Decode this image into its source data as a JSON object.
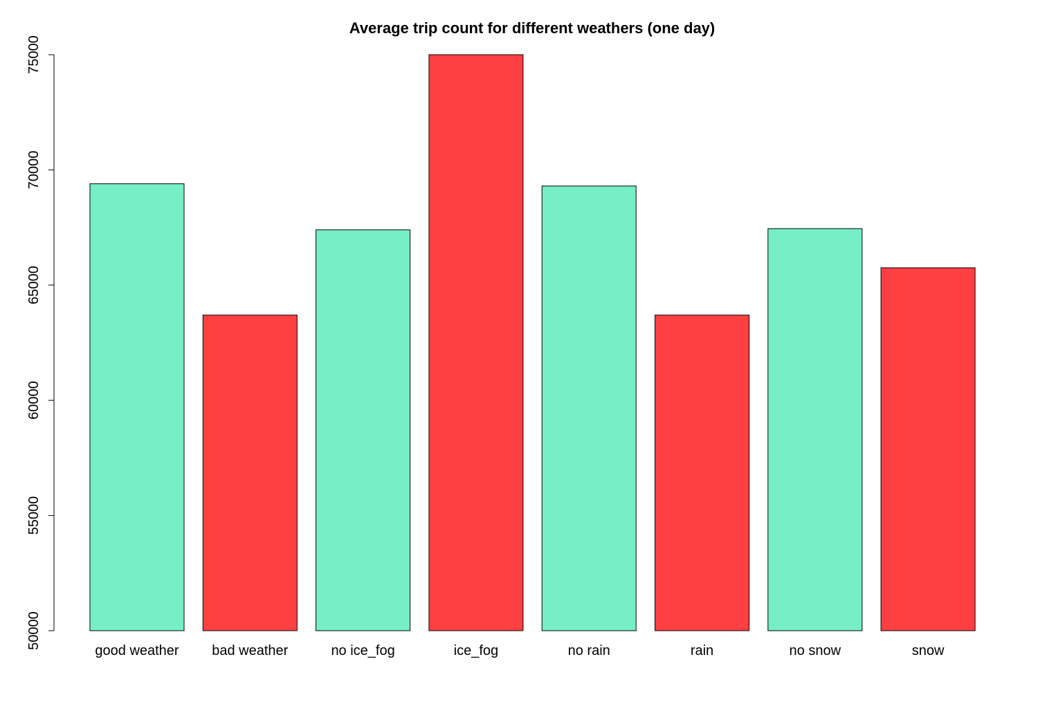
{
  "chart_data": {
    "type": "bar",
    "title": "Average trip count for different weathers (one day)",
    "xlabel": "",
    "ylabel": "",
    "categories": [
      "good weather",
      "bad weather",
      "no ice_fog",
      "ice_fog",
      "no rain",
      "rain",
      "no snow",
      "snow"
    ],
    "values": [
      69400,
      63700,
      67400,
      75000,
      69300,
      63700,
      67450,
      65750
    ],
    "bar_colors": [
      "#76EFC6",
      "#FF4043",
      "#76EFC6",
      "#FF4043",
      "#76EFC6",
      "#FF4043",
      "#76EFC6",
      "#FF4043"
    ],
    "ylim": [
      50000,
      75000
    ],
    "yticks": [
      50000,
      55000,
      60000,
      65000,
      70000,
      75000
    ],
    "ytick_labels": [
      "50000",
      "55000",
      "60000",
      "65000",
      "70000",
      "75000"
    ],
    "grid": false,
    "legend": "none"
  }
}
